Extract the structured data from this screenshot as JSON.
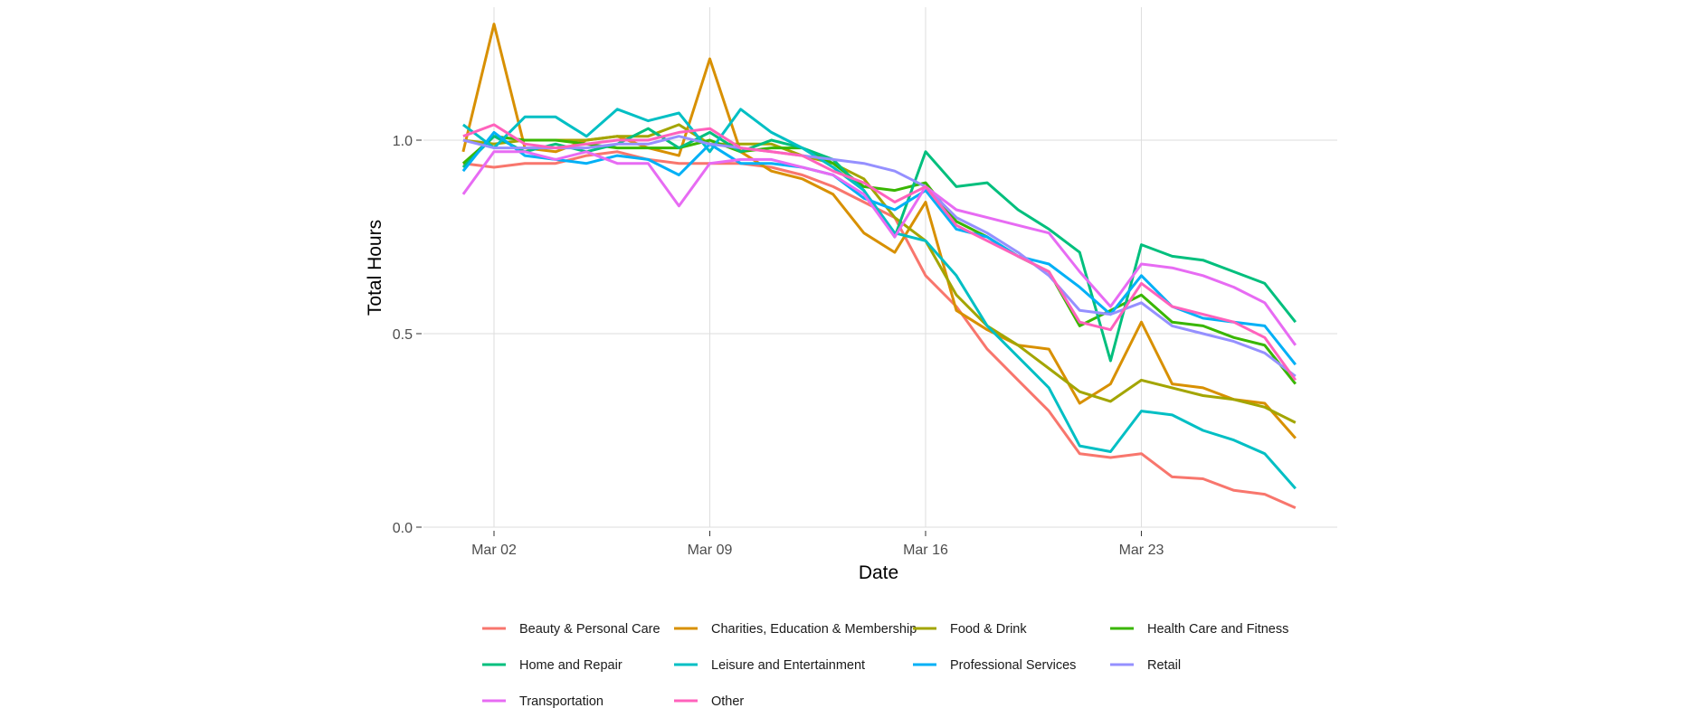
{
  "chart_data": {
    "type": "line",
    "title": "",
    "xlabel": "Date",
    "ylabel": "Total Hours",
    "ylim": [
      0,
      1.3
    ],
    "grid": true,
    "legend_position": "bottom",
    "x_start_day": 1,
    "x_end_day": 28,
    "x_month": "Mar",
    "x_ticks": [
      {
        "day": 2,
        "label": "Mar 02"
      },
      {
        "day": 9,
        "label": "Mar 09"
      },
      {
        "day": 16,
        "label": "Mar 16"
      },
      {
        "day": 23,
        "label": "Mar 23"
      }
    ],
    "y_ticks": [
      {
        "value": 0.0,
        "label": "0.0"
      },
      {
        "value": 0.5,
        "label": "0.5"
      },
      {
        "value": 1.0,
        "label": "1.0"
      }
    ],
    "x": [
      1,
      2,
      3,
      4,
      5,
      6,
      7,
      8,
      9,
      10,
      11,
      12,
      13,
      14,
      15,
      16,
      17,
      18,
      19,
      20,
      21,
      22,
      23,
      24,
      25,
      26,
      27,
      28
    ],
    "series": [
      {
        "name": "Beauty & Personal Care",
        "color": "#F8766D",
        "values": [
          0.94,
          0.93,
          0.94,
          0.94,
          0.96,
          0.97,
          0.95,
          0.94,
          0.94,
          0.94,
          0.93,
          0.91,
          0.88,
          0.84,
          0.8,
          0.65,
          0.57,
          0.46,
          0.38,
          0.3,
          0.19,
          0.18,
          0.19,
          0.13,
          0.125,
          0.095,
          0.085,
          0.05
        ]
      },
      {
        "name": "Charities, Education & Membership",
        "color": "#D89000",
        "values": [
          0.97,
          1.3,
          0.98,
          0.97,
          1.0,
          1.01,
          0.98,
          0.96,
          1.21,
          0.97,
          0.92,
          0.9,
          0.86,
          0.76,
          0.71,
          0.84,
          0.56,
          0.51,
          0.47,
          0.46,
          0.32,
          0.37,
          0.53,
          0.37,
          0.36,
          0.33,
          0.32,
          0.23
        ]
      },
      {
        "name": "Food & Drink",
        "color": "#A3A500",
        "values": [
          1.0,
          0.99,
          1.0,
          1.0,
          1.0,
          1.01,
          1.01,
          1.04,
          0.99,
          0.99,
          0.99,
          0.96,
          0.94,
          0.9,
          0.8,
          0.74,
          0.6,
          0.52,
          0.47,
          0.41,
          0.35,
          0.325,
          0.38,
          0.36,
          0.34,
          0.33,
          0.31,
          0.27
        ]
      },
      {
        "name": "Health Care and Fitness",
        "color": "#39B600",
        "values": [
          0.94,
          1.01,
          1.0,
          1.0,
          0.99,
          0.98,
          0.98,
          0.98,
          1.0,
          0.97,
          0.98,
          0.98,
          0.94,
          0.88,
          0.87,
          0.89,
          0.79,
          0.75,
          0.7,
          0.66,
          0.52,
          0.56,
          0.6,
          0.53,
          0.52,
          0.49,
          0.47,
          0.37
        ]
      },
      {
        "name": "Home and Repair",
        "color": "#00BF7D",
        "values": [
          0.93,
          1.01,
          0.97,
          0.99,
          0.97,
          0.99,
          1.03,
          0.98,
          1.02,
          0.97,
          1.0,
          0.98,
          0.95,
          0.87,
          0.75,
          0.97,
          0.88,
          0.89,
          0.82,
          0.77,
          0.71,
          0.43,
          0.73,
          0.7,
          0.69,
          0.66,
          0.63,
          0.53
        ]
      },
      {
        "name": "Leisure and Entertainment",
        "color": "#00BFC4",
        "values": [
          1.04,
          0.98,
          1.06,
          1.06,
          1.01,
          1.08,
          1.05,
          1.07,
          0.97,
          1.08,
          1.02,
          0.98,
          0.93,
          0.87,
          0.76,
          0.74,
          0.65,
          0.52,
          0.44,
          0.36,
          0.21,
          0.195,
          0.3,
          0.29,
          0.25,
          0.225,
          0.19,
          0.1
        ]
      },
      {
        "name": "Professional Services",
        "color": "#00B0F6",
        "values": [
          0.92,
          1.02,
          0.96,
          0.95,
          0.94,
          0.96,
          0.95,
          0.91,
          0.99,
          0.94,
          0.94,
          0.93,
          0.91,
          0.85,
          0.82,
          0.87,
          0.77,
          0.75,
          0.7,
          0.68,
          0.62,
          0.55,
          0.65,
          0.57,
          0.54,
          0.53,
          0.52,
          0.42
        ]
      },
      {
        "name": "Retail",
        "color": "#9590FF",
        "values": [
          1.0,
          0.98,
          0.98,
          0.98,
          0.98,
          0.99,
          0.99,
          1.01,
          0.99,
          0.98,
          0.97,
          0.96,
          0.95,
          0.94,
          0.92,
          0.88,
          0.8,
          0.76,
          0.71,
          0.65,
          0.56,
          0.55,
          0.58,
          0.52,
          0.5,
          0.48,
          0.45,
          0.39
        ]
      },
      {
        "name": "Transportation",
        "color": "#E76BF3",
        "values": [
          0.86,
          0.97,
          0.97,
          0.95,
          0.97,
          0.94,
          0.94,
          0.83,
          0.94,
          0.95,
          0.95,
          0.93,
          0.91,
          0.86,
          0.75,
          0.88,
          0.82,
          0.8,
          0.78,
          0.76,
          0.66,
          0.57,
          0.68,
          0.67,
          0.65,
          0.62,
          0.58,
          0.47
        ]
      },
      {
        "name": "Other",
        "color": "#FF62BC",
        "values": [
          1.01,
          1.04,
          0.99,
          0.98,
          0.99,
          1.0,
          1.0,
          1.02,
          1.03,
          0.98,
          0.97,
          0.96,
          0.92,
          0.89,
          0.84,
          0.88,
          0.78,
          0.74,
          0.7,
          0.66,
          0.53,
          0.51,
          0.63,
          0.57,
          0.55,
          0.53,
          0.49,
          0.38
        ]
      }
    ]
  }
}
